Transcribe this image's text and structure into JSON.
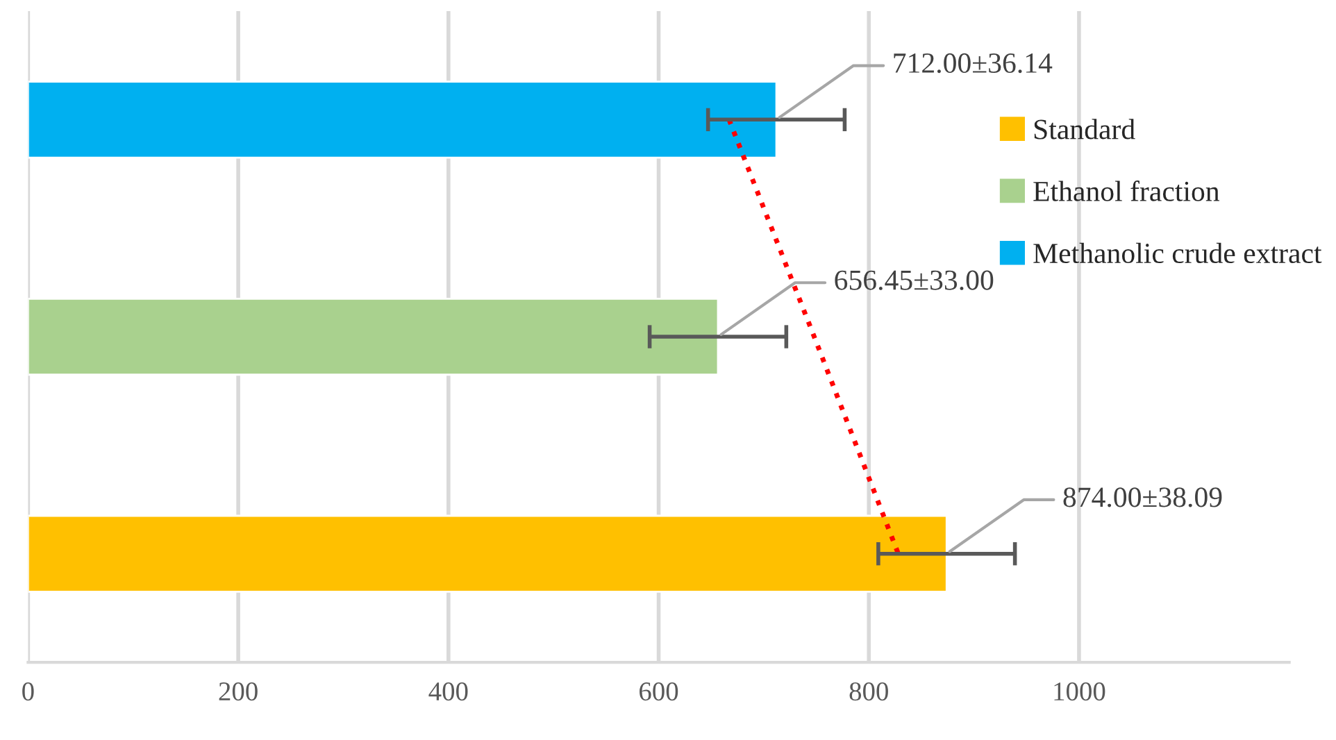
{
  "chart_data": {
    "type": "bar",
    "orientation": "horizontal",
    "categories": [
      null,
      null,
      null
    ],
    "series": [
      {
        "name": "Standard",
        "color": "#ffc000",
        "values": [
          null,
          null,
          874
        ],
        "errors": [
          null,
          null,
          65
        ],
        "value_labels": [
          null,
          null,
          "874.00±38.09"
        ]
      },
      {
        "name": "Ethanol fraction",
        "color": "#a9d18e",
        "values": [
          null,
          656.45,
          null
        ],
        "errors": [
          null,
          65,
          null
        ],
        "value_labels": [
          null,
          "656.45±33.00",
          null
        ]
      },
      {
        "name": "Methanolic crude extract",
        "color": "#00b0f0",
        "values": [
          712,
          null,
          null
        ],
        "errors": [
          65,
          null,
          null
        ],
        "value_labels": [
          "712.00±36.14",
          null,
          null
        ]
      },
      {
        "type": "line",
        "color": "#ff0000",
        "line_style": "dotted",
        "marker": "none",
        "values": [
          667,
          748,
          828
        ]
      }
    ],
    "xlim": [
      0,
      1200
    ],
    "xticks": [
      0,
      200,
      400,
      600,
      800,
      1000
    ],
    "grid": "x",
    "legend": "right"
  }
}
